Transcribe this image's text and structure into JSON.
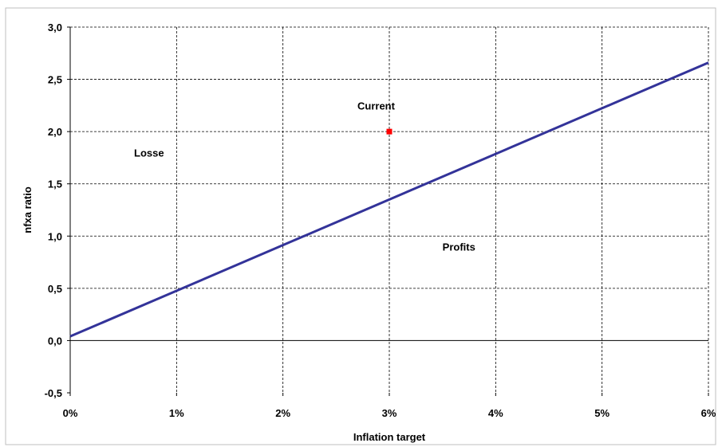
{
  "chart_data": {
    "type": "line",
    "xlabel": "Inflation target",
    "ylabel": "nfxa ratio",
    "xlim": [
      0,
      6
    ],
    "ylim": [
      -0.5,
      3.0
    ],
    "x_ticks": [
      "0%",
      "1%",
      "2%",
      "3%",
      "4%",
      "5%",
      "6%"
    ],
    "x_tick_values": [
      0,
      1,
      2,
      3,
      4,
      5,
      6
    ],
    "y_ticks": [
      "-0,5",
      "0,0",
      "0,5",
      "1,0",
      "1,5",
      "2,0",
      "2,5",
      "3,0"
    ],
    "y_tick_values": [
      -0.5,
      0,
      0.5,
      1.0,
      1.5,
      2.0,
      2.5,
      3.0
    ],
    "grid": true,
    "series": [
      {
        "x": [
          0,
          6
        ],
        "y": [
          0.04,
          2.66
        ],
        "color": "#333399"
      }
    ],
    "points": [
      {
        "x": 3,
        "y": 2.0,
        "color": "#ff0000"
      }
    ],
    "annotations": [
      {
        "text": "Current",
        "x": 2.7,
        "y": 2.25
      },
      {
        "text": "Losse",
        "x": 0.6,
        "y": 1.8
      },
      {
        "text": "Profits",
        "x": 3.5,
        "y": 0.9
      }
    ]
  }
}
